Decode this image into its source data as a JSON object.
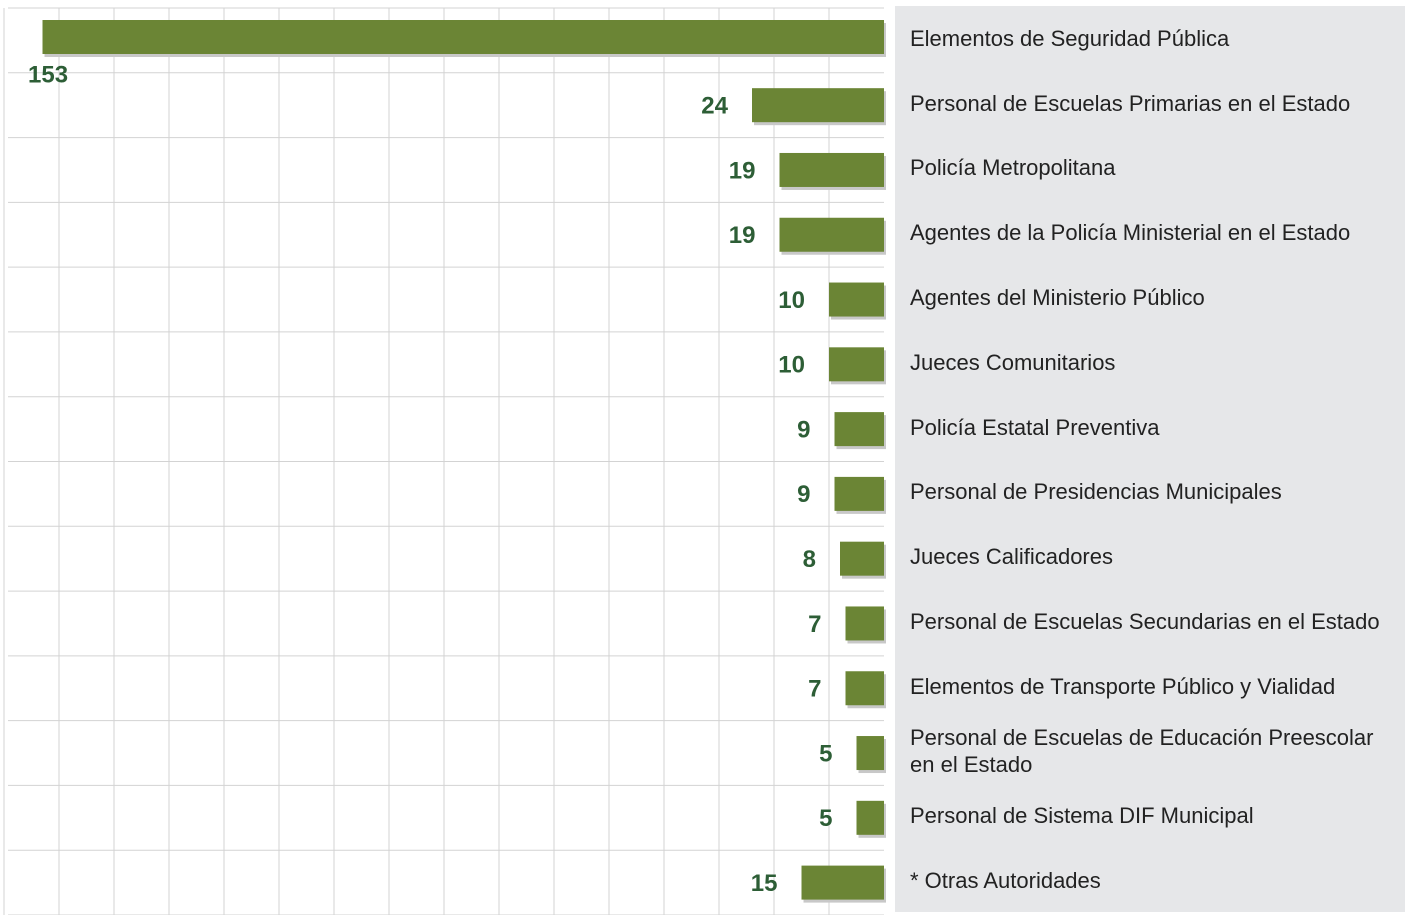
{
  "chart_data": {
    "type": "bar",
    "orientation": "horizontal",
    "categories": [
      "Elementos de Seguridad Pública",
      "Personal de Escuelas Primarias en el Estado",
      "Policía Metropolitana",
      "Agentes de la Policía Ministerial en el Estado",
      "Agentes del Ministerio Público",
      "Jueces Comunitarios",
      "Policía Estatal Preventiva",
      "Personal de Presidencias Municipales",
      "Jueces Calificadores",
      "Personal de Escuelas Secundarias en el Estado",
      "Elementos de Transporte Público y Vialidad",
      "Personal de Escuelas de Educación Preescolar en el Estado",
      "Personal de Sistema DIF Municipal",
      "* Otras Autoridades"
    ],
    "values": [
      153,
      24,
      19,
      19,
      10,
      10,
      9,
      9,
      8,
      7,
      7,
      5,
      5,
      15
    ],
    "color": "#6b8535",
    "xlim": [
      0,
      160
    ],
    "xticks": [
      10,
      20,
      30,
      40,
      50,
      60,
      70,
      80,
      90,
      100,
      110,
      120,
      130,
      140,
      150,
      160
    ],
    "grid": true
  }
}
